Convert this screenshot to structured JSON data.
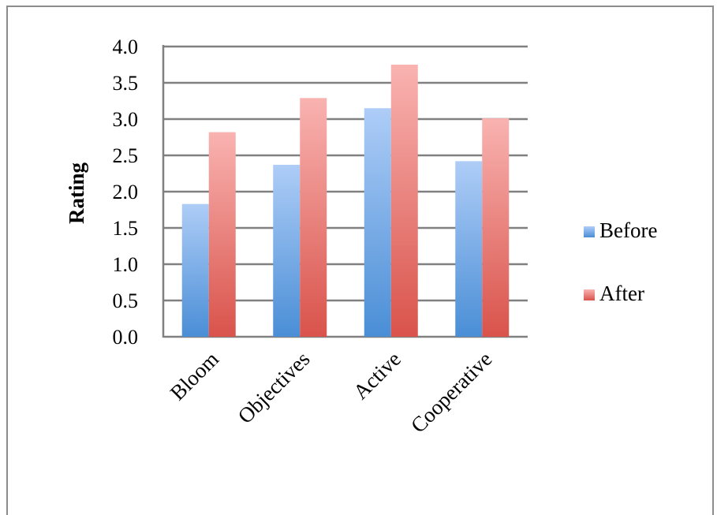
{
  "chart_data": {
    "type": "bar",
    "title": "",
    "xlabel": "",
    "ylabel": "Rating",
    "ylim": [
      0,
      4
    ],
    "yticks": [
      "0.0",
      "0.5",
      "1.0",
      "1.5",
      "2.0",
      "2.5",
      "3.0",
      "3.5",
      "4.0"
    ],
    "categories": [
      "Bloom",
      "Objectives",
      "Active",
      "Cooperative"
    ],
    "series": [
      {
        "name": "Before",
        "values": [
          1.83,
          2.37,
          3.15,
          2.42
        ]
      },
      {
        "name": "After",
        "values": [
          2.82,
          3.29,
          3.75,
          3.01
        ]
      }
    ],
    "grid": true,
    "legend_position": "right"
  },
  "colors": {
    "before_top": "#aecdf7",
    "before_bottom": "#4a8ed6",
    "after_top": "#f9b3b1",
    "after_bottom": "#d9534b",
    "grid": "#808080",
    "frame": "#8c8c8c"
  }
}
